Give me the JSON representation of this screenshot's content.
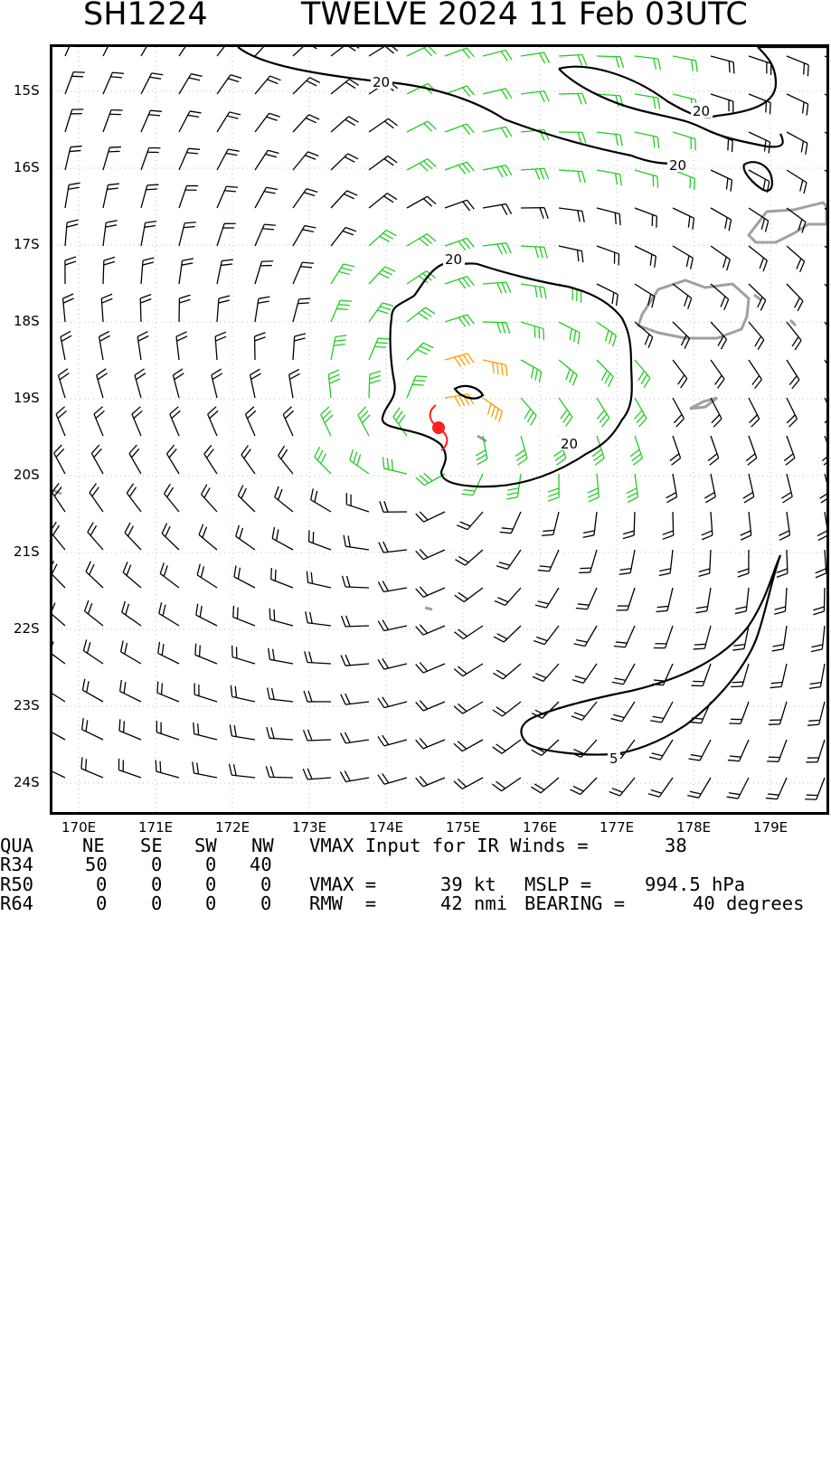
{
  "header": {
    "storm_id": "SH1224",
    "storm_title": "TWELVE 2024 11 Feb 03UTC"
  },
  "map": {
    "lat_labels": [
      "15S",
      "16S",
      "17S",
      "18S",
      "19S",
      "20S",
      "21S",
      "22S",
      "23S",
      "24S"
    ],
    "lon_labels": [
      "170E",
      "171E",
      "172E",
      "173E",
      "174E",
      "175E",
      "176E",
      "177E",
      "178E",
      "179E"
    ],
    "contour_labels": [
      "20",
      "20",
      "20",
      "20",
      "20",
      "5"
    ],
    "storm_center": {
      "lat": -19.4,
      "lon": 174.75
    },
    "colors": {
      "barb_default": "#000000",
      "barb_34kt": "#22cc22",
      "barb_50kt": "#ff9900",
      "land": "#a0a0a0",
      "storm_symbol": "#ff2020",
      "contour": "#000000"
    },
    "legend_note": "wind barbs in knots; green >= 34 kt, orange >= 50 kt"
  },
  "info_panel": {
    "quad_header": {
      "label": "QUA",
      "ne": "NE",
      "se": "SE",
      "sw": "SW",
      "nw": "NW"
    },
    "rows": [
      {
        "label": "R34",
        "ne": "50",
        "se": "0",
        "sw": "0",
        "nw": "40"
      },
      {
        "label": "R50",
        "ne": "0",
        "se": "0",
        "sw": "0",
        "nw": "0"
      },
      {
        "label": "R64",
        "ne": "0",
        "se": "0",
        "sw": "0",
        "nw": "0"
      }
    ],
    "vmax_input_text": "VMAX Input for IR Winds =",
    "vmax_input_value": "38",
    "vmax_text": "VMAX =",
    "vmax_value": "39 kt",
    "mslp_text": "MSLP =",
    "mslp_value": "994.5 hPa",
    "rmw_text": "RMW  =",
    "rmw_value": "42 nmi",
    "bearing_text": "BEARING =",
    "bearing_value": "40 degrees"
  }
}
